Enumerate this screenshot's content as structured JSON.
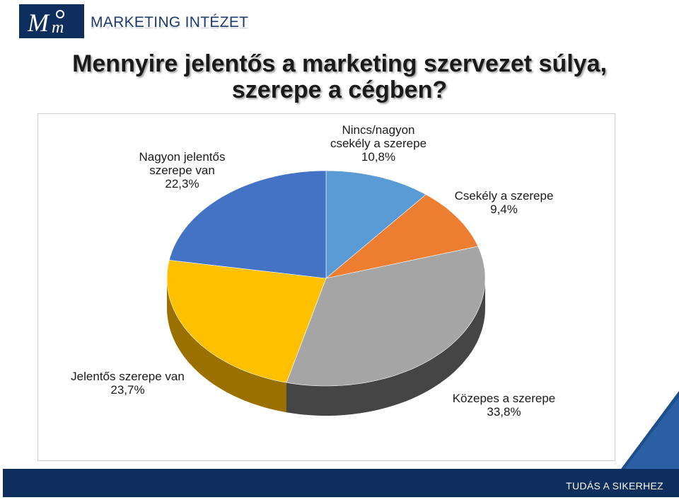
{
  "header": {
    "brand_name": "MARKETING INTÉZET"
  },
  "title": {
    "line1": "Mennyire jelentős a marketing szervezet súlya,",
    "line2": "szerepe a cégben?"
  },
  "footer": {
    "tagline": "TUDÁS A SIKERHEZ"
  },
  "colors": {
    "navy": "#0e2f5e",
    "corner": "#1f4e8c"
  },
  "chart_data": {
    "type": "pie",
    "title": "",
    "unit": "%",
    "slices": [
      {
        "label": "Nincs/nagyon csekély a szerepe",
        "value": 10.8,
        "display": "10,8%",
        "color": "#5b9bd5",
        "side": "#3f7ab2"
      },
      {
        "label": "Csekély a szerepe",
        "value": 9.4,
        "display": "9,4%",
        "color": "#ed7d31",
        "side": "#b85a1e"
      },
      {
        "label": "Közepes a szerepe",
        "value": 33.8,
        "display": "33,8%",
        "color": "#a5a5a5",
        "side": "#454545"
      },
      {
        "label": "Jelentős szerepe van",
        "value": 23.7,
        "display": "23,7%",
        "color": "#ffc000",
        "side": "#9a7000"
      },
      {
        "label": "Nagyon jelentős szerepe van",
        "value": 22.3,
        "display": "22,3%",
        "color": "#4472c4",
        "side": "#2c4f8c"
      }
    ],
    "labels": [
      {
        "lines": [
          "Nincs/nagyon",
          "csekély a szerepe",
          "10,8%"
        ]
      },
      {
        "lines": [
          "Csekély a szerepe",
          "9,4%"
        ]
      },
      {
        "lines": [
          "Közepes a szerepe",
          "33,8%"
        ]
      },
      {
        "lines": [
          "Jelentős szerepe van",
          "23,7%"
        ]
      },
      {
        "lines": [
          "Nagyon jelentős",
          "szerepe van",
          "22,3%"
        ]
      }
    ],
    "style": "3d",
    "legend": "none"
  }
}
